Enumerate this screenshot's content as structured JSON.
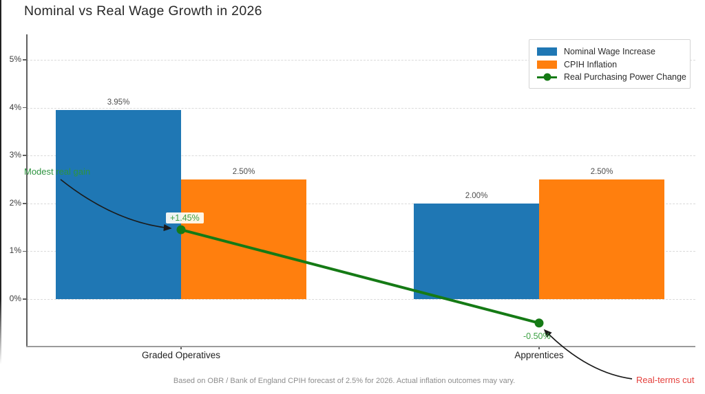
{
  "title": "Nominal vs Real Wage Growth in 2026",
  "footer": "Based on OBR / Bank of England CPIH forecast of 2.5% for 2026. Actual inflation outcomes may vary.",
  "annotations": {
    "modest_real_gain": "Modest real gain",
    "real_terms_cut": "Real-terms cut"
  },
  "colors": {
    "nominal_bar": "#1f77b4",
    "inflation_bar": "#ff7f0e",
    "real_line": "#157a15",
    "gain_text": "#2e9440",
    "cut_text": "#e5403c",
    "point_label_text": "#3ba042",
    "arrow": "#1b1b1b"
  },
  "chart_data": {
    "type": "bar",
    "categories": [
      "Graded Operatives",
      "Apprentices"
    ],
    "series": [
      {
        "name": "Nominal Wage Increase",
        "type": "bar",
        "color": "#1f77b4",
        "values": [
          3.95,
          2.0
        ],
        "labels": [
          "3.95%",
          "2.00%"
        ]
      },
      {
        "name": "CPIH Inflation",
        "type": "bar",
        "color": "#ff7f0e",
        "values": [
          2.5,
          2.5
        ],
        "labels": [
          "2.50%",
          "2.50%"
        ]
      },
      {
        "name": "Real Purchasing Power Change",
        "type": "line",
        "color": "#157a15",
        "values": [
          1.45,
          -0.5
        ],
        "labels": [
          "+1.45%",
          "-0.50%"
        ]
      }
    ],
    "title": "Nominal vs Real Wage Growth in 2026",
    "xlabel": "",
    "ylabel": "",
    "y_ticks": [
      "5%",
      "4%",
      "3%",
      "2%",
      "1%",
      "0%"
    ],
    "y_tick_values": [
      5,
      4,
      3,
      2,
      1,
      0
    ],
    "ylim": [
      -1,
      5.5
    ],
    "grid": "horizontal dashed",
    "legend_position": "upper right"
  }
}
